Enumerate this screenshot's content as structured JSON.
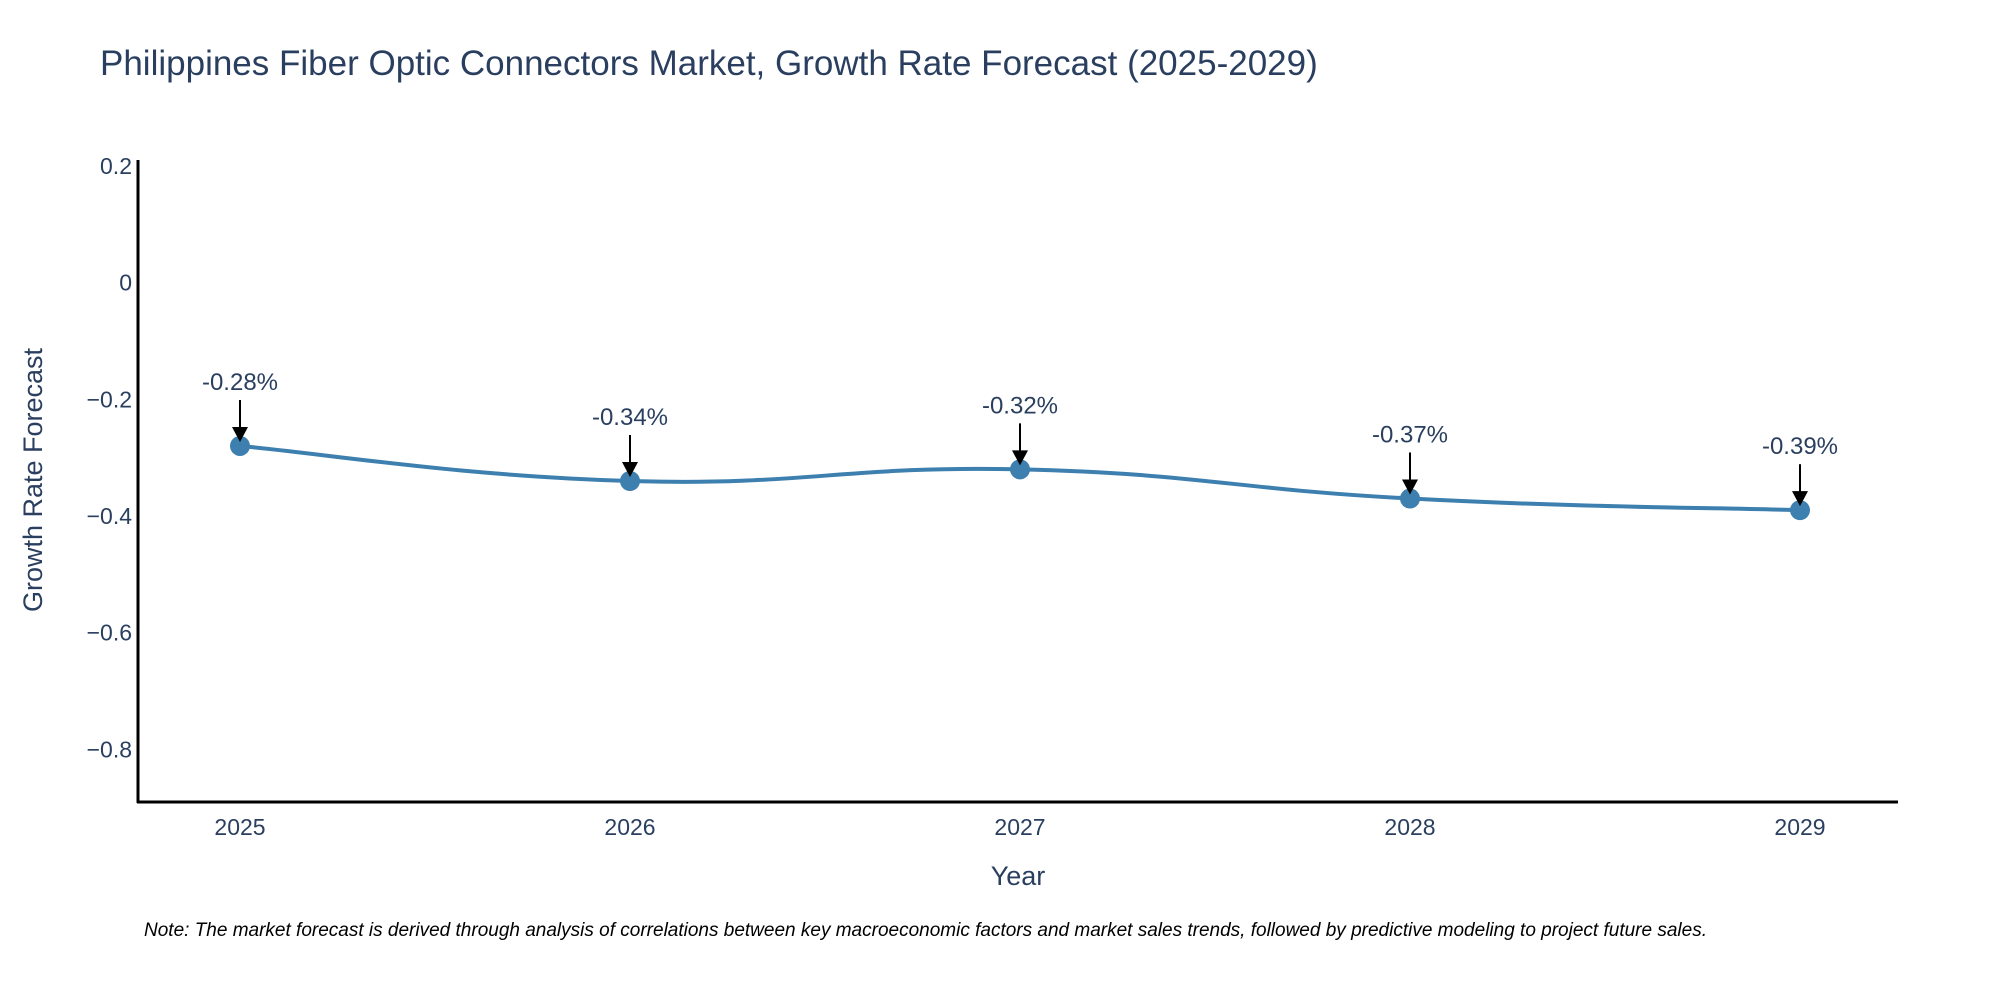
{
  "chart_data": {
    "type": "line",
    "title": "Philippines Fiber Optic Connectors Market, Growth Rate Forecast (2025-2029)",
    "xlabel": "Year",
    "ylabel": "Growth Rate Forecast",
    "x": [
      "2025",
      "2026",
      "2027",
      "2028",
      "2029"
    ],
    "series": [
      {
        "name": "Growth Rate Forecast",
        "values": [
          -0.28,
          -0.34,
          -0.32,
          -0.37,
          -0.39
        ],
        "color": "#3d7fae"
      }
    ],
    "data_labels": [
      "-0.28%",
      "-0.34%",
      "-0.32%",
      "-0.37%",
      "-0.39%"
    ],
    "ylim": [
      -0.89,
      0.21
    ],
    "y_ticks": [
      0.2,
      0,
      -0.2,
      -0.4,
      -0.6,
      -0.8
    ],
    "y_tick_labels": [
      "0.2",
      "0",
      "−0.2",
      "−0.4",
      "−0.6",
      "−0.8"
    ],
    "line_shape": "spline",
    "grid": false
  },
  "note": "Note: The market forecast is derived through analysis of correlations between key macroeconomic factors and market sales trends, followed by predictive modeling to project future sales."
}
